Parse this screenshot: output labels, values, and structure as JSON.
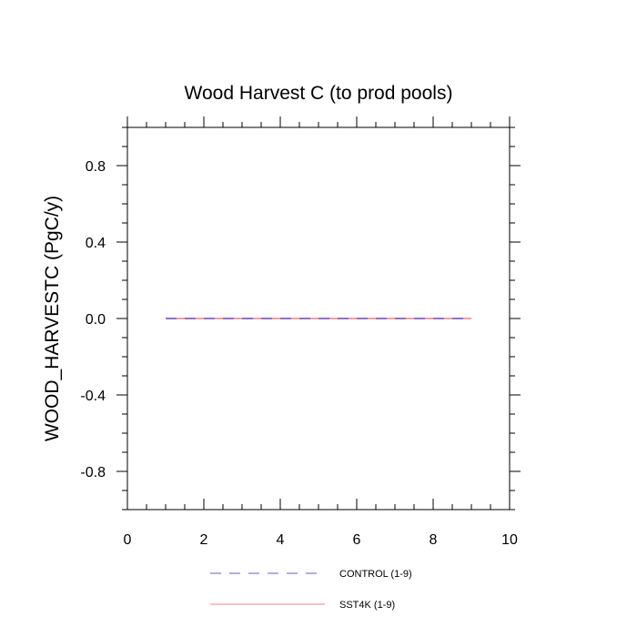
{
  "chart_data": {
    "type": "line",
    "title": "Wood Harvest C (to prod pools)",
    "xlabel": "",
    "ylabel": "WOOD_HARVESTC  (PgC/y)",
    "xlim": [
      0,
      10
    ],
    "ylim": [
      -1,
      1
    ],
    "x_ticks": [
      0,
      2,
      4,
      6,
      8,
      10
    ],
    "x_tick_labels": [
      "0",
      "2",
      "4",
      "6",
      "8",
      "10"
    ],
    "y_ticks": [
      -0.8,
      -0.4,
      0.0,
      0.4,
      0.8
    ],
    "y_tick_labels": [
      "-0.8",
      "-0.4",
      "0.0",
      "0.4",
      "0.8"
    ],
    "grid": false,
    "legend_placement": "bottom",
    "series": [
      {
        "name": "CONTROL (1-9)",
        "color": "#6a5acd",
        "dash": "dashed",
        "x": [
          1,
          2,
          3,
          4,
          5,
          6,
          7,
          8,
          9
        ],
        "y": [
          0,
          0,
          0,
          0,
          0,
          0,
          0,
          0,
          0
        ]
      },
      {
        "name": "SST4K (1-9)",
        "color": "#f08080",
        "dash": "solid",
        "x": [
          1,
          2,
          3,
          4,
          5,
          6,
          7,
          8,
          9
        ],
        "y": [
          0,
          0,
          0,
          0,
          0,
          0,
          0,
          0,
          0
        ]
      }
    ]
  }
}
